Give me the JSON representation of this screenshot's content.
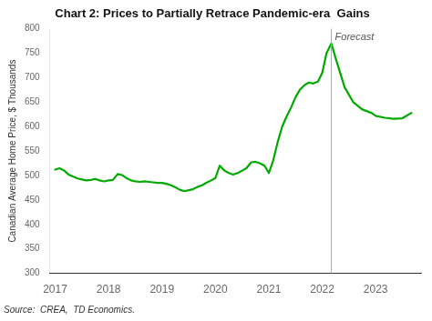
{
  "chart_data": {
    "type": "line",
    "title": "Chart 2: Prices to Partially Retrace Pandemic-era  Gains",
    "ylabel": "Canadian Average Home Price, $ Thousands",
    "source": "Source:  CREA,  TD Economics.",
    "color": "#00aa00",
    "x": [
      2017.0,
      2017.08,
      2017.17,
      2017.25,
      2017.33,
      2017.42,
      2017.5,
      2017.58,
      2017.67,
      2017.75,
      2017.83,
      2017.92,
      2018.0,
      2018.08,
      2018.17,
      2018.25,
      2018.33,
      2018.42,
      2018.5,
      2018.58,
      2018.67,
      2018.75,
      2018.83,
      2018.92,
      2019.0,
      2019.08,
      2019.17,
      2019.25,
      2019.33,
      2019.42,
      2019.5,
      2019.58,
      2019.67,
      2019.75,
      2019.83,
      2019.92,
      2020.0,
      2020.08,
      2020.17,
      2020.25,
      2020.33,
      2020.42,
      2020.5,
      2020.58,
      2020.67,
      2020.75,
      2020.83,
      2020.92,
      2021.0,
      2021.08,
      2021.17,
      2021.25,
      2021.33,
      2021.42,
      2021.5,
      2021.58,
      2021.67,
      2021.75,
      2021.83,
      2021.92,
      2022.0,
      2022.08,
      2022.17,
      2022.17,
      2022.25,
      2022.42,
      2022.58,
      2022.75,
      2022.92,
      2023.0,
      2023.17,
      2023.33,
      2023.5,
      2023.67
    ],
    "values": [
      512,
      515,
      510,
      502,
      498,
      494,
      492,
      490,
      491,
      493,
      490,
      488,
      490,
      491,
      503,
      501,
      495,
      490,
      488,
      487,
      488,
      487,
      486,
      485,
      485,
      483,
      480,
      476,
      471,
      468,
      470,
      472,
      477,
      480,
      485,
      490,
      495,
      520,
      510,
      505,
      502,
      505,
      510,
      515,
      527,
      528,
      525,
      520,
      505,
      530,
      570,
      600,
      620,
      640,
      660,
      675,
      685,
      690,
      688,
      692,
      710,
      750,
      770,
      770,
      740,
      680,
      650,
      635,
      628,
      622,
      618,
      616,
      617,
      628
    ],
    "xlim": [
      2016.9,
      2023.85
    ],
    "xticks": [
      2017,
      2018,
      2019,
      2020,
      2021,
      2022,
      2023
    ],
    "ylim": [
      300,
      800
    ],
    "yticks": [
      300,
      350,
      400,
      450,
      500,
      550,
      600,
      650,
      700,
      750,
      800
    ],
    "grid": false,
    "annotations": [
      {
        "type": "vline",
        "x": 2022.17,
        "color": "#aaaaaa",
        "text": "Forecast"
      }
    ]
  }
}
